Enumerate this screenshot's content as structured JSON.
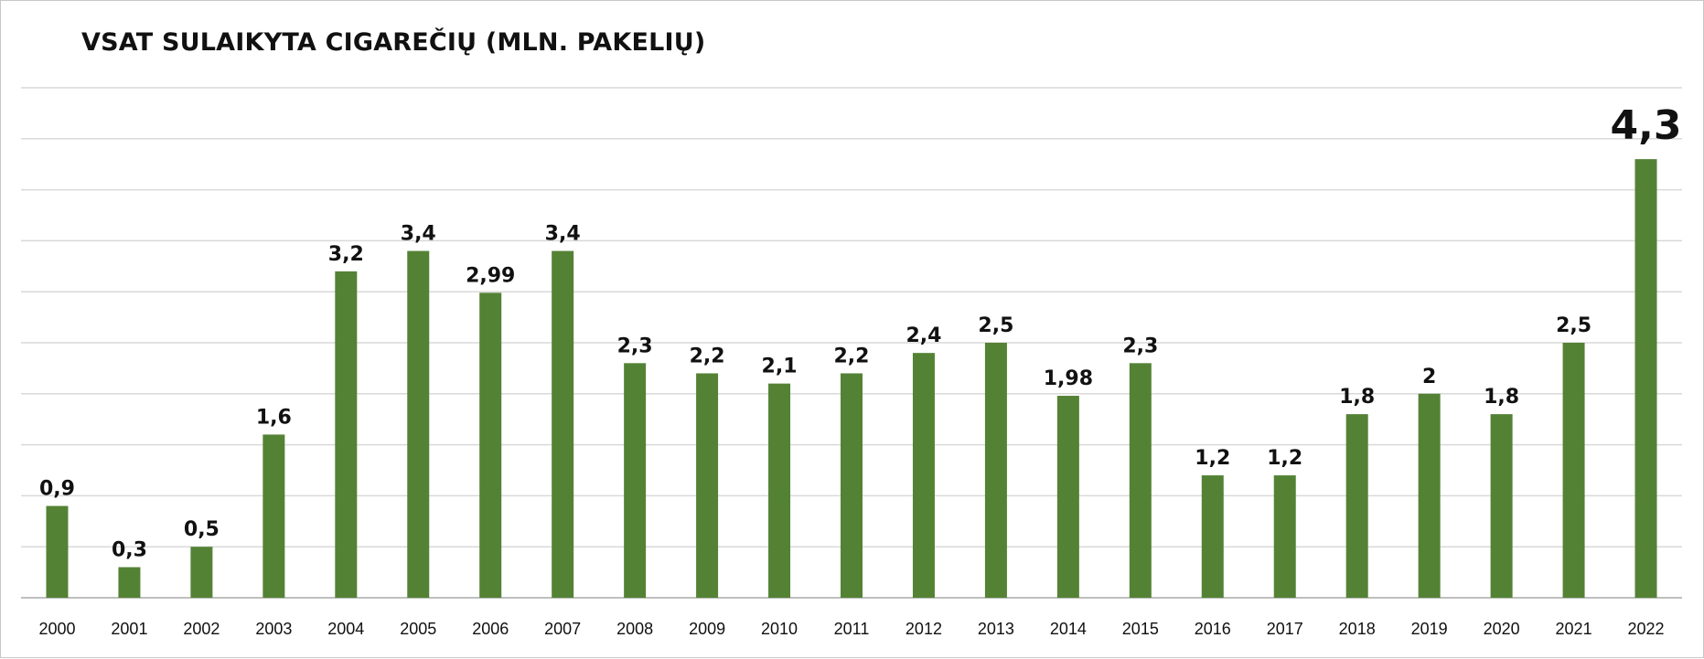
{
  "chart_data": {
    "type": "bar",
    "title": "VSAT SULAIKYTA CIGAREČIŲ (MLN. PAKELIŲ)",
    "categories": [
      "2000",
      "2001",
      "2002",
      "2003",
      "2004",
      "2005",
      "2006",
      "2007",
      "2008",
      "2009",
      "2010",
      "2011",
      "2012",
      "2013",
      "2014",
      "2015",
      "2016",
      "2017",
      "2018",
      "2019",
      "2020",
      "2021",
      "2022"
    ],
    "values": [
      0.9,
      0.3,
      0.5,
      1.6,
      3.2,
      3.4,
      2.99,
      3.4,
      2.3,
      2.2,
      2.1,
      2.2,
      2.4,
      2.5,
      1.98,
      2.3,
      1.2,
      1.2,
      1.8,
      2,
      1.8,
      2.5,
      4.3
    ],
    "data_labels": [
      "0,9",
      "0,3",
      "0,5",
      "1,6",
      "3,2",
      "3,4",
      "2,99",
      "3,4",
      "2,3",
      "2,2",
      "2,1",
      "2,2",
      "2,4",
      "2,5",
      "1,98",
      "2,3",
      "1,2",
      "1,2",
      "1,8",
      "2",
      "1,8",
      "2,5",
      "4,3"
    ],
    "xlabel": "",
    "ylabel": "",
    "ylim": [
      0,
      5
    ],
    "grid": true,
    "legend": "none",
    "highlight_index": 22,
    "colors": {
      "bar": "#548235",
      "grid": "#d9d9d9",
      "axis": "#bfbfbf",
      "highlight_label": "#b0121b",
      "text": "#111111"
    }
  }
}
